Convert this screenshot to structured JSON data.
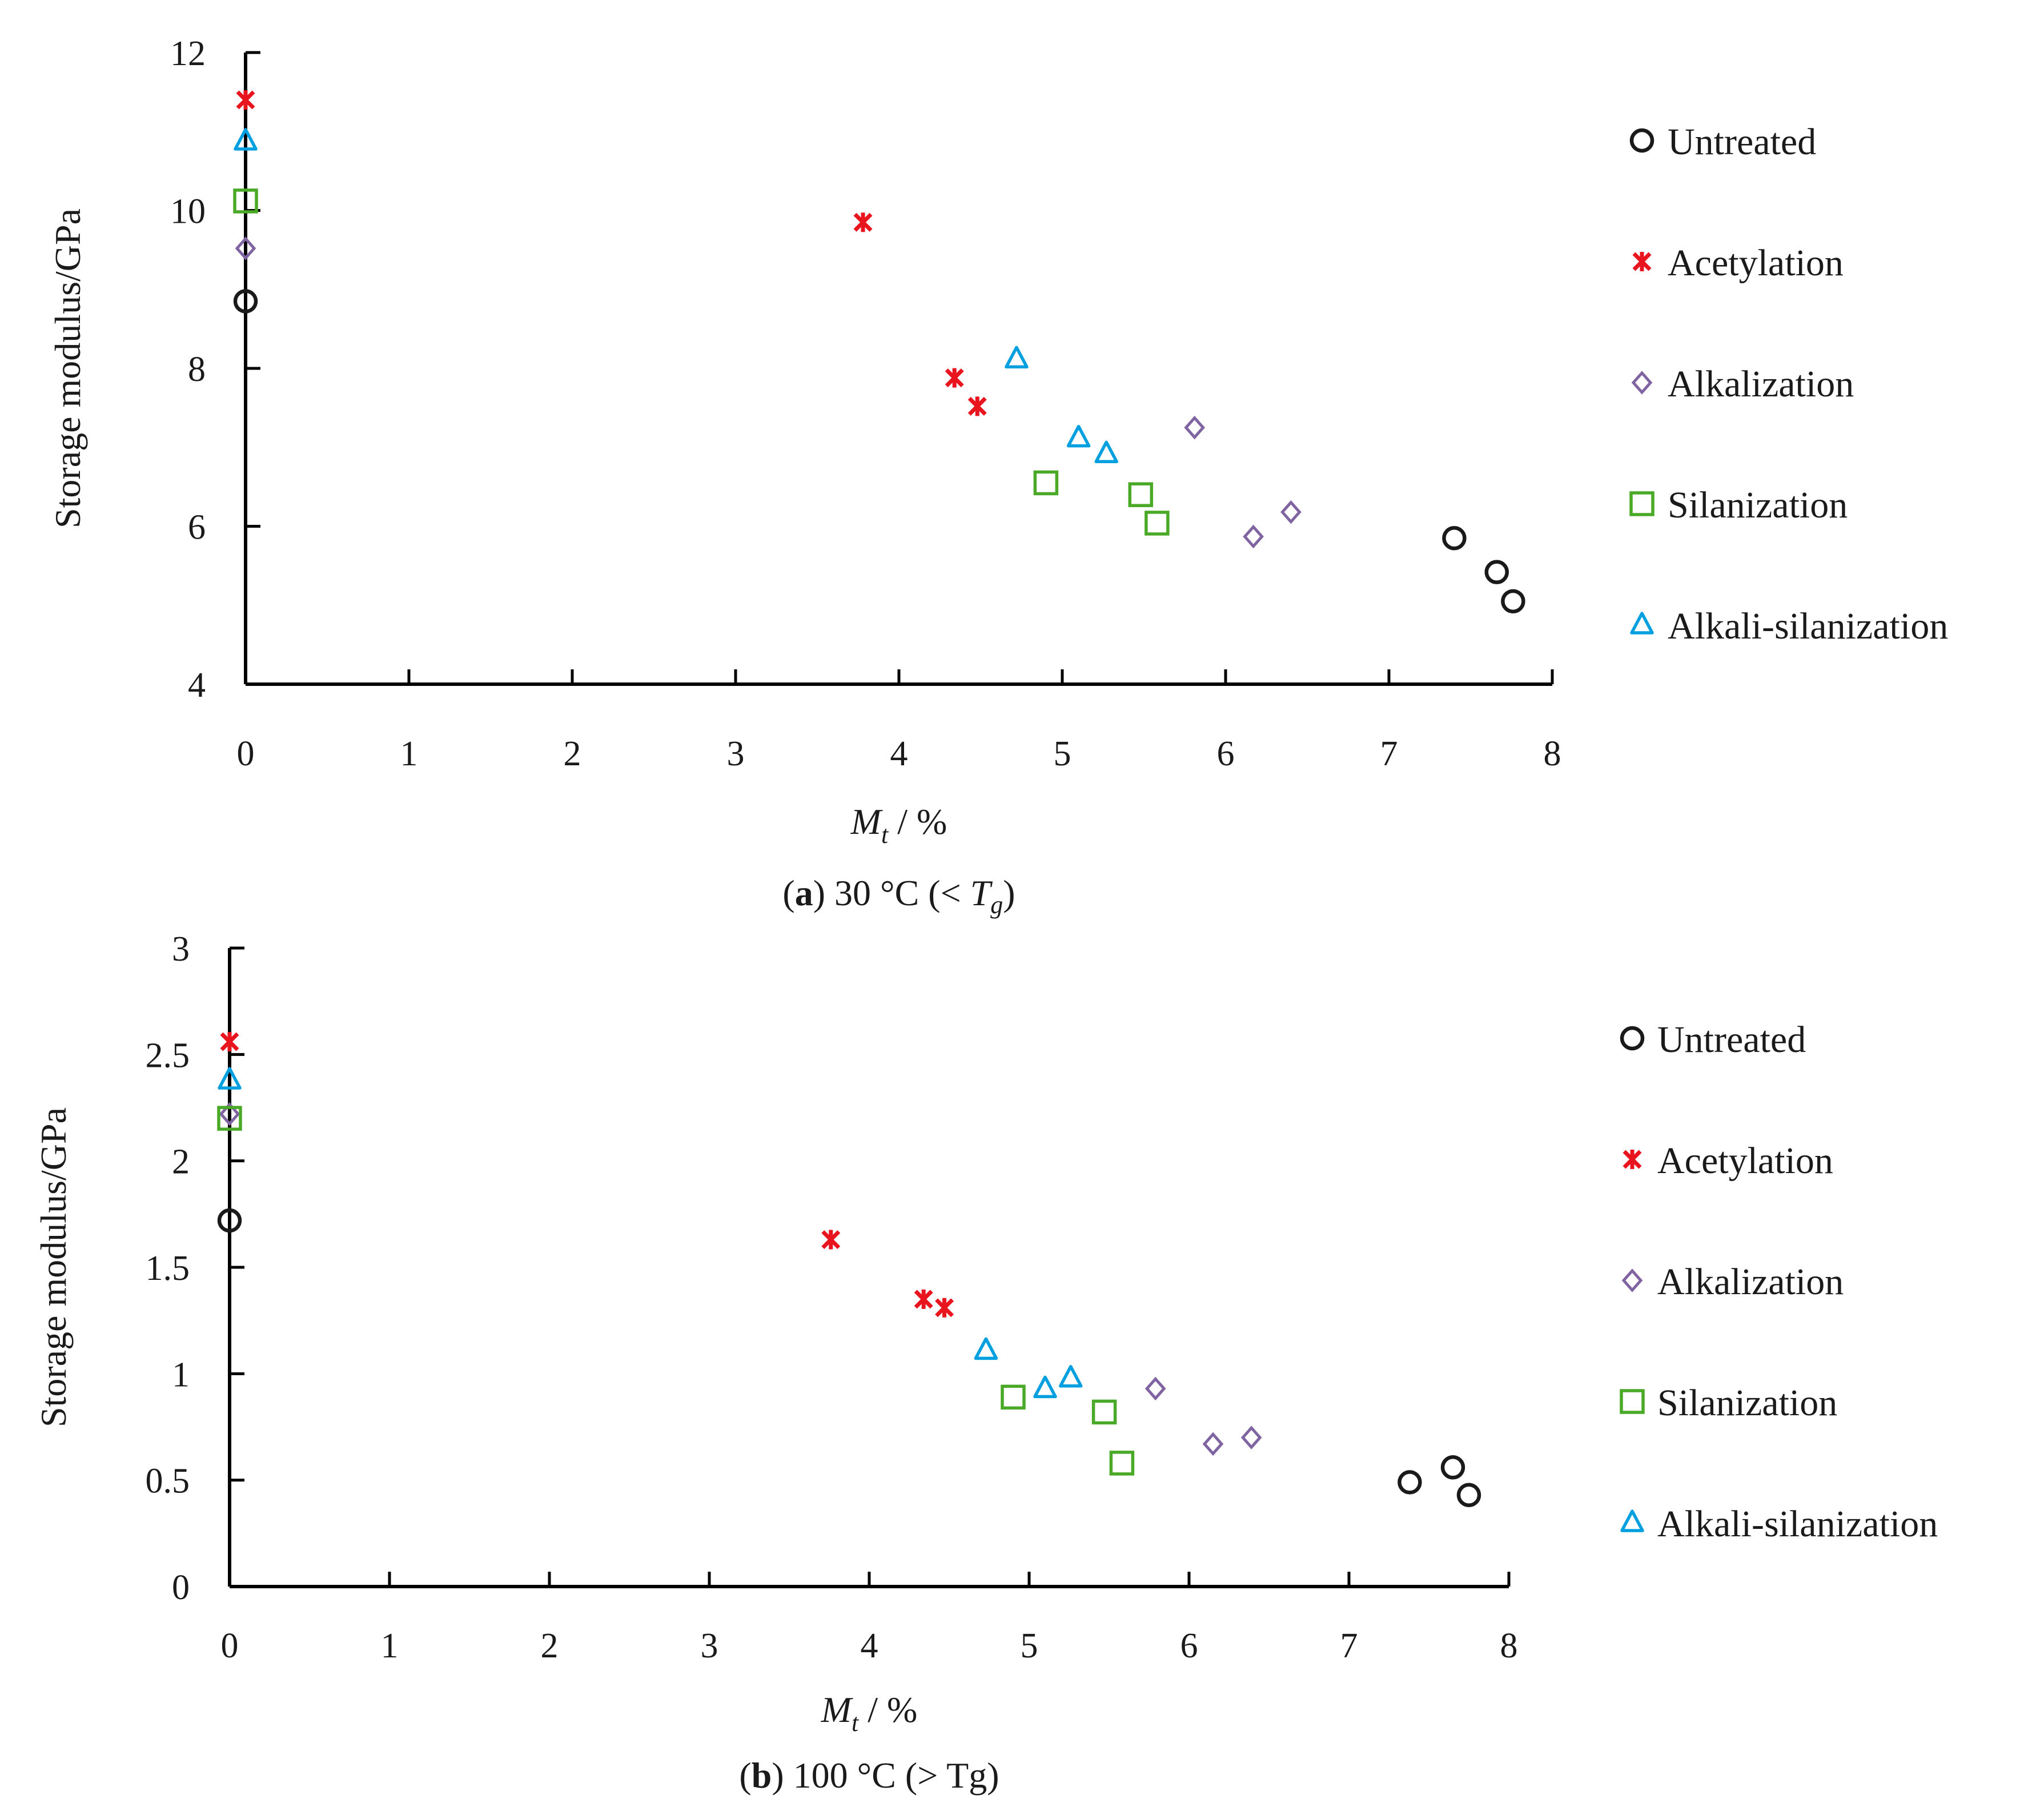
{
  "chart_data": [
    {
      "type": "scatter",
      "panel_label": "a",
      "caption": "30 °C (< Tg)",
      "caption_parts": {
        "open": "(",
        "letter": "a",
        "close": ")",
        "text": " 30 °C (< ",
        "tg_main": "T",
        "tg_sub": "g",
        "end": ")"
      },
      "xlabel": {
        "main": "M",
        "sub": "t",
        "rest": " / %"
      },
      "ylabel": "Storage modulus/GPa",
      "xlim": [
        0,
        8
      ],
      "ylim": [
        4,
        12
      ],
      "xticks": [
        "0",
        "1",
        "2",
        "3",
        "4",
        "5",
        "6",
        "7",
        "8"
      ],
      "yticks": [
        "4",
        "6",
        "8",
        "10",
        "12"
      ],
      "series": [
        {
          "name": "Untreated",
          "marker": "circle",
          "color": "#1a1a1a",
          "points": [
            [
              0,
              8.85
            ],
            [
              7.4,
              5.85
            ],
            [
              7.66,
              5.42
            ],
            [
              7.76,
              5.05
            ]
          ]
        },
        {
          "name": "Acetylation",
          "marker": "asterisk",
          "color": "#e8141e",
          "points": [
            [
              0,
              11.4
            ],
            [
              3.78,
              9.85
            ],
            [
              4.34,
              7.88
            ],
            [
              4.48,
              7.52
            ]
          ]
        },
        {
          "name": "Alkalization",
          "marker": "diamond",
          "color": "#8064a2",
          "points": [
            [
              0,
              9.52
            ],
            [
              5.81,
              7.25
            ],
            [
              6.17,
              5.87
            ],
            [
              6.4,
              6.18
            ]
          ]
        },
        {
          "name": "Silanization",
          "marker": "square",
          "color": "#4aaa28",
          "points": [
            [
              0,
              10.12
            ],
            [
              4.9,
              6.55
            ],
            [
              5.48,
              6.4
            ],
            [
              5.58,
              6.04
            ]
          ]
        },
        {
          "name": "Alkali-silanization",
          "marker": "triangle",
          "color": "#00a0e0",
          "points": [
            [
              0,
              10.88
            ],
            [
              4.72,
              8.12
            ],
            [
              5.1,
              7.12
            ],
            [
              5.27,
              6.92
            ]
          ]
        }
      ]
    },
    {
      "type": "scatter",
      "panel_label": "b",
      "caption": "100 °C (> Tg)",
      "caption_parts": {
        "open": "(",
        "letter": "b",
        "close": ")",
        "text": " 100 °C (> Tg)"
      },
      "xlabel": {
        "main": "M",
        "sub": "t",
        "rest": " / %"
      },
      "ylabel": "Storage modulus/GPa",
      "xlim": [
        0,
        8
      ],
      "ylim": [
        0,
        3
      ],
      "xticks": [
        "0",
        "1",
        "2",
        "3",
        "4",
        "5",
        "6",
        "7",
        "8"
      ],
      "yticks": [
        "0",
        "0.5",
        "1",
        "1.5",
        "2",
        "2.5",
        "3"
      ],
      "series": [
        {
          "name": "Untreated",
          "marker": "circle",
          "color": "#1a1a1a",
          "points": [
            [
              0,
              1.72
            ],
            [
              7.38,
              0.49
            ],
            [
              7.65,
              0.56
            ],
            [
              7.75,
              0.43
            ]
          ]
        },
        {
          "name": "Acetylation",
          "marker": "asterisk",
          "color": "#e8141e",
          "points": [
            [
              0,
              2.56
            ],
            [
              3.76,
              1.63
            ],
            [
              4.34,
              1.35
            ],
            [
              4.47,
              1.31
            ]
          ]
        },
        {
          "name": "Alkalization",
          "marker": "diamond",
          "color": "#8064a2",
          "points": [
            [
              0,
              2.22
            ],
            [
              5.79,
              0.93
            ],
            [
              6.15,
              0.67
            ],
            [
              6.39,
              0.7
            ]
          ]
        },
        {
          "name": "Silanization",
          "marker": "square",
          "color": "#4aaa28",
          "points": [
            [
              0,
              2.2
            ],
            [
              4.9,
              0.89
            ],
            [
              5.47,
              0.82
            ],
            [
              5.58,
              0.58
            ]
          ]
        },
        {
          "name": "Alkali-silanization",
          "marker": "triangle",
          "color": "#00a0e0",
          "points": [
            [
              0,
              2.38
            ],
            [
              4.73,
              1.11
            ],
            [
              5.1,
              0.93
            ],
            [
              5.26,
              0.98
            ]
          ]
        }
      ]
    }
  ]
}
